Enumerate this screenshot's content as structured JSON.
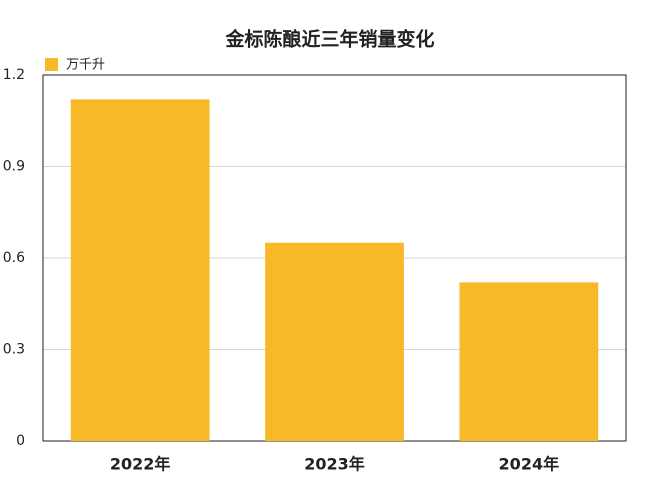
{
  "chart_data": {
    "type": "bar",
    "title": "金标陈酿近三年销量变化",
    "legend": "万千升",
    "categories": [
      "2022年",
      "2023年",
      "2024年"
    ],
    "values": [
      1.12,
      0.65,
      0.52
    ],
    "color": "#f7b928",
    "ylim": [
      0,
      1.2
    ],
    "yticks": [
      0,
      0.3,
      0.6,
      0.9,
      1.2
    ],
    "grid": true
  }
}
